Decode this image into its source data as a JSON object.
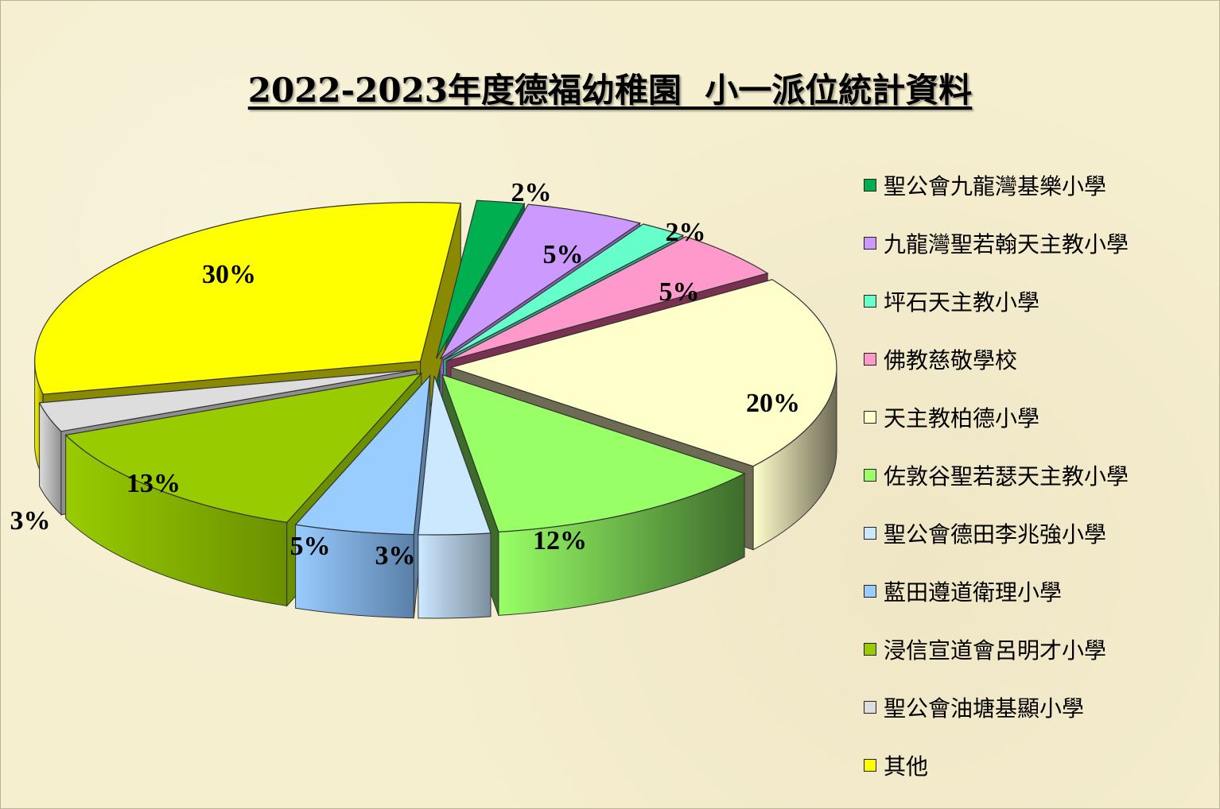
{
  "chart_data": {
    "type": "pie",
    "title": "2022-2023年度德福幼稚園  小一派位統計資料",
    "legend_position": "right",
    "slices": [
      {
        "label": "聖公會九龍灣基樂小學",
        "value": 2,
        "value_label": "2%",
        "color": "#00b050",
        "side_color": "#00703a"
      },
      {
        "label": "九龍灣聖若翰天主教小學",
        "value": 5,
        "value_label": "5%",
        "color": "#cc99ff",
        "side_color": "#8e62b8"
      },
      {
        "label": "坪石天主教小學",
        "value": 2,
        "value_label": "2%",
        "color": "#66ffcc",
        "side_color": "#2fa98a"
      },
      {
        "label": "佛教慈敬學校",
        "value": 5,
        "value_label": "5%",
        "color": "#ff99cc",
        "side_color": "#7a3050"
      },
      {
        "label": "天主教柏德小學",
        "value": 20,
        "value_label": "20%",
        "color": "#ffffcc",
        "side_color": "#6e6b55"
      },
      {
        "label": "佐敦谷聖若瑟天主教小學",
        "value": 12,
        "value_label": "12%",
        "color": "#99ff66",
        "side_color": "#3d6b2c"
      },
      {
        "label": "聖公會德田李兆強小學",
        "value": 3,
        "value_label": "3%",
        "color": "#cce8ff",
        "side_color": "#7d8f9e"
      },
      {
        "label": "藍田遵道衛理小學",
        "value": 5,
        "value_label": "5%",
        "color": "#99ccff",
        "side_color": "#5a80a8"
      },
      {
        "label": "浸信宣道會呂明才小學",
        "value": 13,
        "value_label": "13%",
        "color": "#99cc00",
        "side_color": "#6a8f00"
      },
      {
        "label": "聖公會油塘基顯小學",
        "value": 3,
        "value_label": "3%",
        "color": "#dddddd",
        "side_color": "#8f8f8f"
      },
      {
        "label": "其他",
        "value": 30,
        "value_label": "30%",
        "color": "#ffff00",
        "side_color": "#8a8a00"
      }
    ]
  }
}
